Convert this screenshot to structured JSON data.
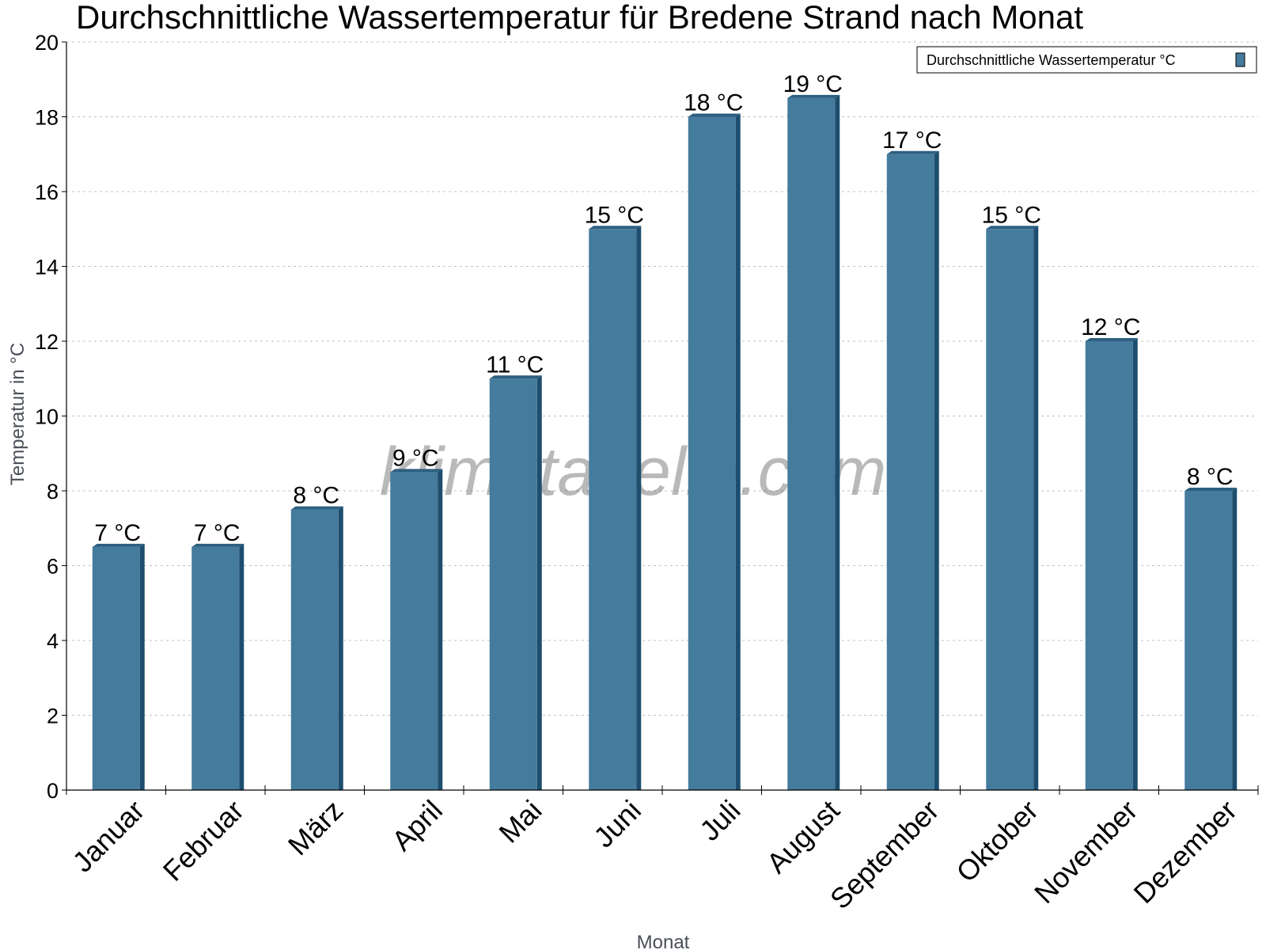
{
  "watermark": "klimatabelle.com",
  "colors": {
    "bar_front": "#457b9d",
    "bar_side": "#1d4e6e",
    "bar_top": "#2d5f80",
    "grid": "#c0c0c0",
    "axis": "#000000"
  },
  "chart_data": {
    "type": "bar",
    "title": "Durchschnittliche Wassertemperatur für Bredene Strand nach Monat",
    "xlabel": "Monat",
    "ylabel": "Temperatur in °C",
    "ylim": [
      0,
      20
    ],
    "yticks": [
      0,
      2,
      4,
      6,
      8,
      10,
      12,
      14,
      16,
      18,
      20
    ],
    "grid": true,
    "legend_position": "top-right",
    "categories": [
      "Januar",
      "Februar",
      "März",
      "April",
      "Mai",
      "Juni",
      "Juli",
      "August",
      "September",
      "Oktober",
      "November",
      "Dezember"
    ],
    "series": [
      {
        "name": "Durchschnittliche Wassertemperatur °C",
        "values": [
          6.5,
          6.5,
          7.5,
          8.5,
          11,
          15,
          18,
          18.5,
          17,
          15,
          12,
          8
        ],
        "labels": [
          "7 °C",
          "7 °C",
          "8 °C",
          "9 °C",
          "11 °C",
          "15 °C",
          "18 °C",
          "19 °C",
          "17 °C",
          "15 °C",
          "12 °C",
          "8 °C"
        ]
      }
    ]
  }
}
